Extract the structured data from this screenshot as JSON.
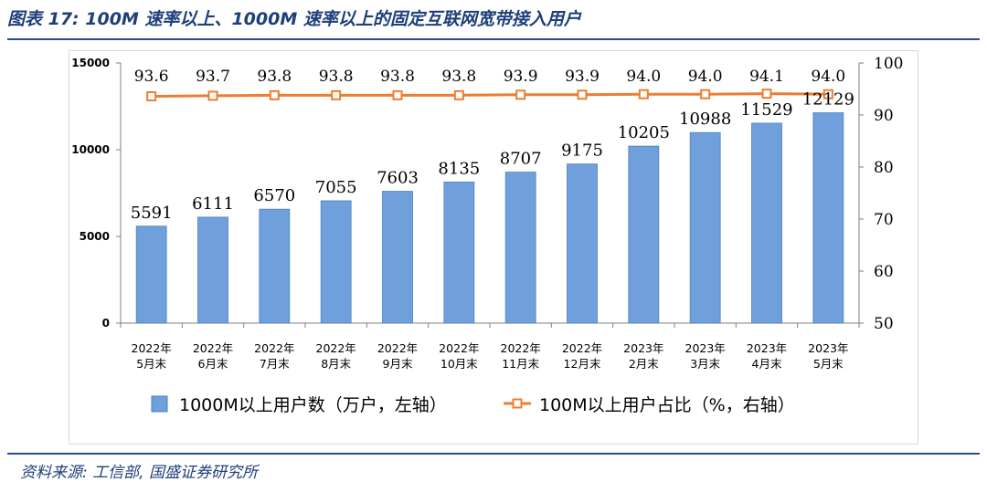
{
  "header": {
    "title": "图表 17:  100M 速率以上、1000M 速率以上的固定互联网宽带接入用户"
  },
  "footer": {
    "source": "资料来源: 工信部, 国盛证券研究所"
  },
  "colors": {
    "bar": "#6fa0dc",
    "bar_edge": "#4a7fc0",
    "line": "#ed7d31",
    "rule": "#2c4d8a",
    "title": "#1f3f7a"
  },
  "chart_data": {
    "type": "bar",
    "categories": [
      [
        "2022年",
        "5月末"
      ],
      [
        "2022年",
        "6月末"
      ],
      [
        "2022年",
        "7月末"
      ],
      [
        "2022年",
        "8月末"
      ],
      [
        "2022年",
        "9月末"
      ],
      [
        "2022年",
        "10月末"
      ],
      [
        "2022年",
        "11月末"
      ],
      [
        "2022年",
        "12月末"
      ],
      [
        "2023年",
        "2月末"
      ],
      [
        "2023年",
        "3月末"
      ],
      [
        "2023年",
        "4月末"
      ],
      [
        "2023年",
        "5月末"
      ]
    ],
    "series": [
      {
        "name": "1000M以上用户数（万户，左轴）",
        "type": "bar",
        "axis": "left",
        "values": [
          5591,
          6111,
          6570,
          7055,
          7603,
          8135,
          8707,
          9175,
          10205,
          10988,
          11529,
          12129
        ],
        "labels": [
          "5591",
          "6111",
          "6570",
          "7055",
          "7603",
          "8135",
          "8707",
          "9175",
          "10205",
          "10988",
          "11529",
          "12129"
        ]
      },
      {
        "name": "100M以上用户占比（%，右轴）",
        "type": "line",
        "axis": "right",
        "values": [
          93.6,
          93.7,
          93.8,
          93.8,
          93.8,
          93.8,
          93.9,
          93.9,
          94.0,
          94.0,
          94.1,
          94.0
        ],
        "labels": [
          "93.6",
          "93.7",
          "93.8",
          "93.8",
          "93.8",
          "93.8",
          "93.9",
          "93.9",
          "94.0",
          "94.0",
          "94.1",
          "94.0"
        ]
      }
    ],
    "y_left": {
      "lim": [
        0,
        15000
      ],
      "ticks": [
        "0",
        "5000",
        "10000",
        "15000"
      ]
    },
    "y_right": {
      "lim": [
        50,
        100
      ],
      "ticks": [
        "50",
        "60",
        "70",
        "80",
        "90",
        "100"
      ]
    },
    "legend_position": "bottom",
    "grid": false
  }
}
